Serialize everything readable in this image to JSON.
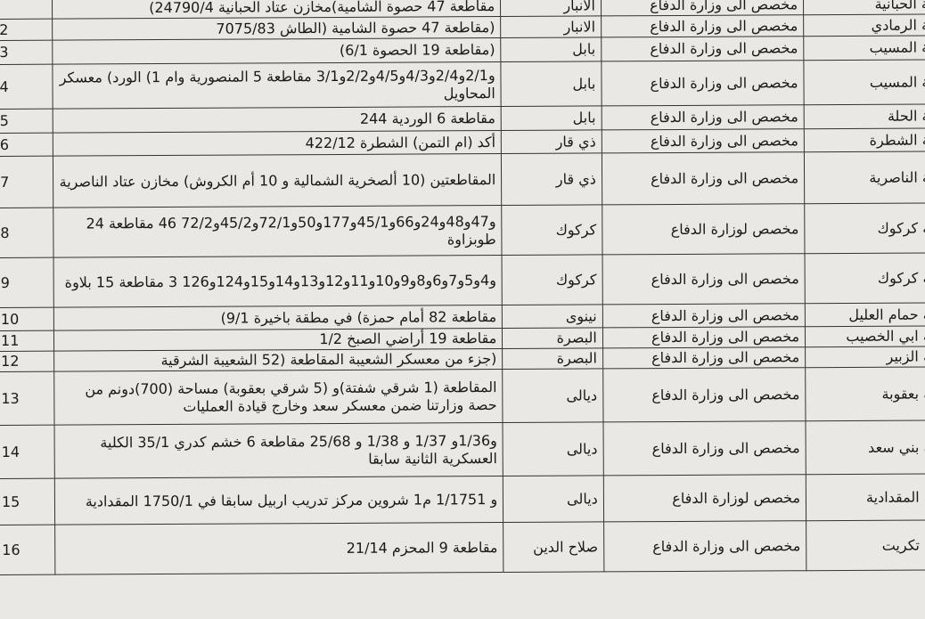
{
  "rows": [
    {
      "num": "",
      "desc": "مقاطعة 47 حصوة الشامية)مخازن عتاد الحبانية 24790/4)",
      "gov": "الانبار",
      "status": "مخصص الى وزارة الدفاع",
      "mun": "بلدية الحبانية"
    },
    {
      "num": "2",
      "desc": "(مقاطعة 47 حصوة الشامية (الطاش 7075/83",
      "gov": "الانبار",
      "status": "مخصص الى وزارة الدفاع",
      "mun": "بلدية الرمادي"
    },
    {
      "num": "3",
      "desc": "(مقاطعة 19 الحصوة 6/1)",
      "gov": "بابل",
      "status": "مخصص الى وزارة الدفاع",
      "mun": "بلدية المسيب"
    },
    {
      "num": "4",
      "desc": "و2/1و2/4و4/3و4/5و2/2و3/1 مقاطعة 5 المنصورية وام 1) الورد) معسكر المحاويل",
      "gov": "بابل",
      "status": "مخصص الى وزارة الدفاع",
      "mun": "بلدية المسيب"
    },
    {
      "num": "5",
      "desc": "مقاطعة 6 الوردية 244",
      "gov": "بابل",
      "status": "مخصص الى وزارة الدفاع",
      "mun": "بلدية الحلة"
    },
    {
      "num": "6",
      "desc": "أكد (ام التمن) الشطرة 422/12",
      "gov": "ذي قار",
      "status": "مخصص الى وزارة الدفاع",
      "mun": "بلدية الشطرة"
    },
    {
      "num": "7",
      "desc": "المقاطعتين (10 ألصخرية الشمالية و 10 أم الكروش) مخازن عتاد الناصرية",
      "gov": "ذي قار",
      "status": "مخصص الى وزارة الدفاع",
      "mun": "بلدية الناصرية"
    },
    {
      "num": "8",
      "desc": "و47و48و24و66و45/1و177و50و72/1و45/2و72/2 46 مقاطعة 24 طوبزاوة",
      "gov": "كركوك",
      "status": "مخصص لوزارة الدفاع",
      "mun": "بلدية كركوك"
    },
    {
      "num": "9",
      "desc": "و4و5و7و6و8و9و10و11و12و13و14و15و124و126 3 مقاطعة 15 بلاوة",
      "gov": "كركوك",
      "status": "مخصص الى وزارة الدفاع",
      "mun": "بلدية كركوك"
    },
    {
      "num": "10",
      "desc": "مقاطعة 82 أمام حمزة) في مطقة باخيرة 9/1)",
      "gov": "نينوى",
      "status": "مخصص الى وزارة الدفاع",
      "mun": "بلدية حمام العليل"
    },
    {
      "num": "11",
      "desc": "مقاطعة 19 أراضي الصبخ 1/2",
      "gov": "البصرة",
      "status": "مخصص الى وزارة الدفاع",
      "mun": "بلدية ابي الخصيب"
    },
    {
      "num": "12",
      "desc": "(جزء من معسكر الشعيبة المقاطعة (52 الشعيبة الشرقية",
      "gov": "البصرة",
      "status": "مخصص الى وزارة الدفاع",
      "mun": "بلدية الزبير"
    },
    {
      "num": "13",
      "desc": "المقاطعة (1 شرقي شفتة)و (5 شرقي بعقوبة) مساحة (700)دونم من حصة وزارتنا ضمن معسكر سعد وخارج قيادة العمليات",
      "gov": "ديالى",
      "status": "مخصص الى وزارة الدفاع",
      "mun": "بلدية بعقوبة"
    },
    {
      "num": "14",
      "desc": "و1/36و 1/37 و 1/38 و 25/68 مقاطعة 6 خشم كدري 35/1 الكلية العسكرية الثانية سابقا",
      "gov": "ديالى",
      "status": "مخصص الى وزارة الدفاع",
      "mun": "بلدية بني سعد"
    },
    {
      "num": "15",
      "desc": "و 1/1751 م1 شروين مركز تدريب اربيل سابقا في 1750/1 المقدادية",
      "gov": "ديالى",
      "status": "مخصص لوزارة الدفاع",
      "mun": "بلدية المقدادية"
    },
    {
      "num": "16",
      "desc": "مقاطعة 9 المحزم 21/14",
      "gov": "صلاح الدين",
      "status": "مخصص الى وزارة الدفاع",
      "mun": "بلدية تكريت"
    }
  ]
}
